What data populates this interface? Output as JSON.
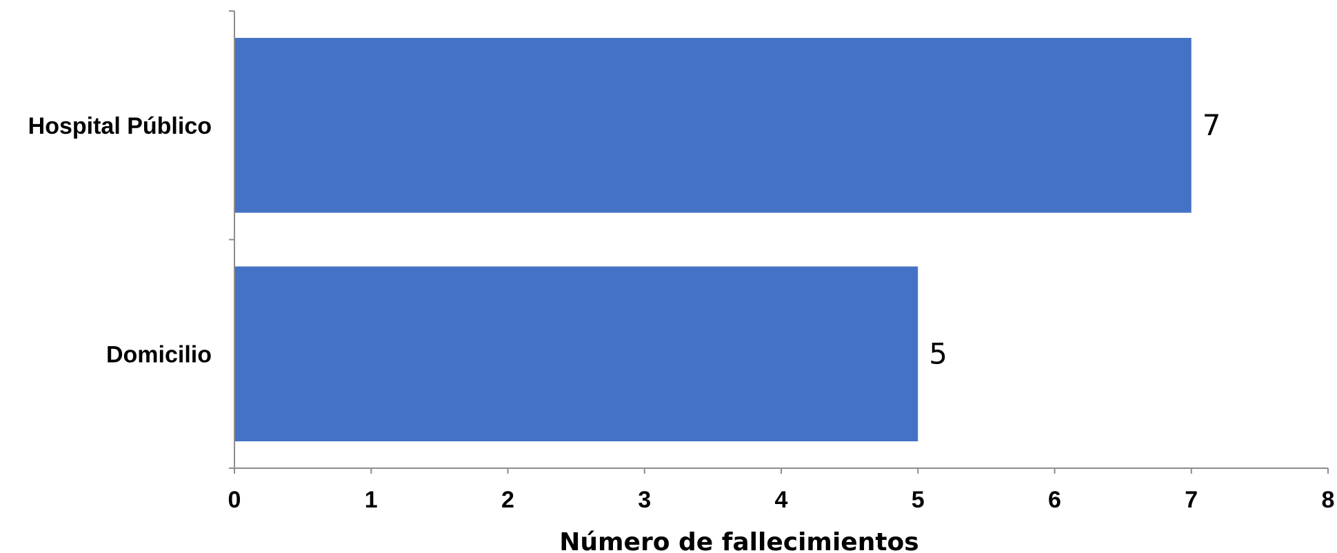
{
  "chart_data": {
    "type": "bar",
    "orientation": "horizontal",
    "categories": [
      "Hospital Público",
      "Domicilio"
    ],
    "values": [
      7,
      5
    ],
    "data_labels": [
      "7",
      "5"
    ],
    "xlabel": "Número de fallecimientos",
    "xlim": [
      0,
      8
    ],
    "xticks": [
      "0",
      "1",
      "2",
      "3",
      "4",
      "5",
      "6",
      "7",
      "8"
    ],
    "bar_color": "#4472C4",
    "grid": false,
    "legend": "none"
  }
}
